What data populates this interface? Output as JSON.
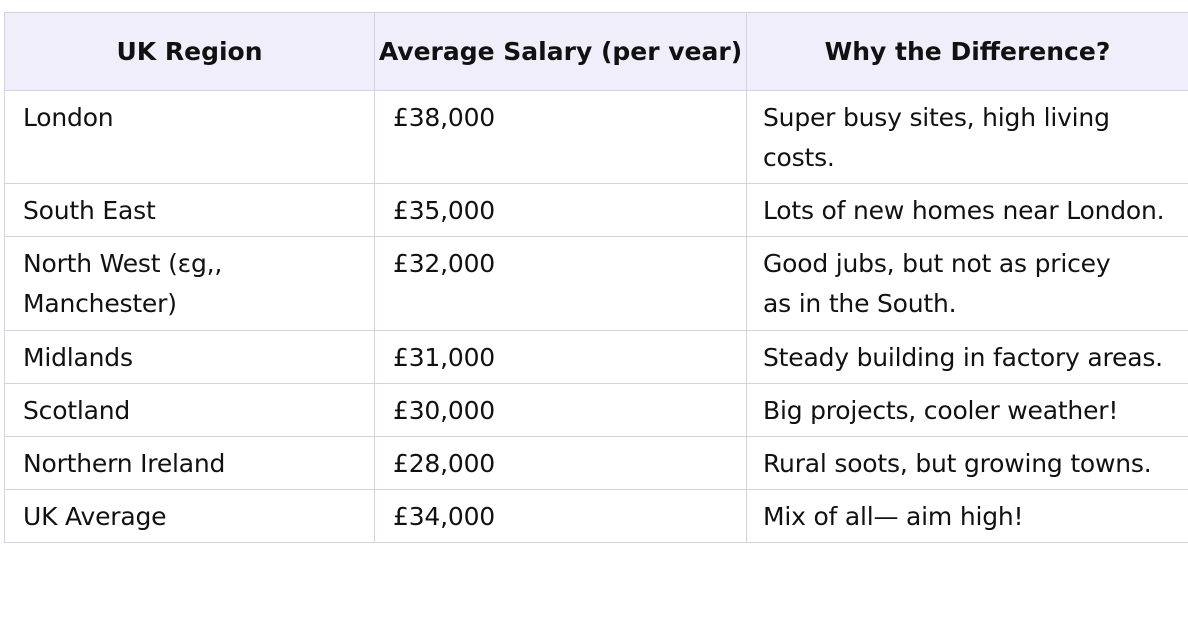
{
  "table": {
    "headers": [
      "UK Region",
      "Average Salary (per vear)",
      "Why the Difference?"
    ],
    "rows": [
      {
        "region": "London",
        "salary": "£38,000",
        "reason": "Super busy sites, high living costs."
      },
      {
        "region": "South East",
        "salary": "£35,000",
        "reason": "Lots of new homes near London."
      },
      {
        "region": "North West (ɛg,, Manchester)",
        "salary": "£32,000",
        "reason": "Good jubs, but not as pricey as in the South."
      },
      {
        "region": "Midlands",
        "salary": "£31,000",
        "reason": "Steady building in factory areas."
      },
      {
        "region": "Scotland",
        "salary": "£30,000",
        "reason": "Big projects, cooler weather!"
      },
      {
        "region": "Northern Ireland",
        "salary": "£28,000",
        "reason": "Rural soots, but growing towns."
      },
      {
        "region": "UK Average",
        "salary": "£34,000",
        "reason": "Mix of all— aim high!"
      }
    ]
  },
  "colors": {
    "header_background": "#f0eefa",
    "border": "#d3d3df",
    "text": "#111111"
  }
}
